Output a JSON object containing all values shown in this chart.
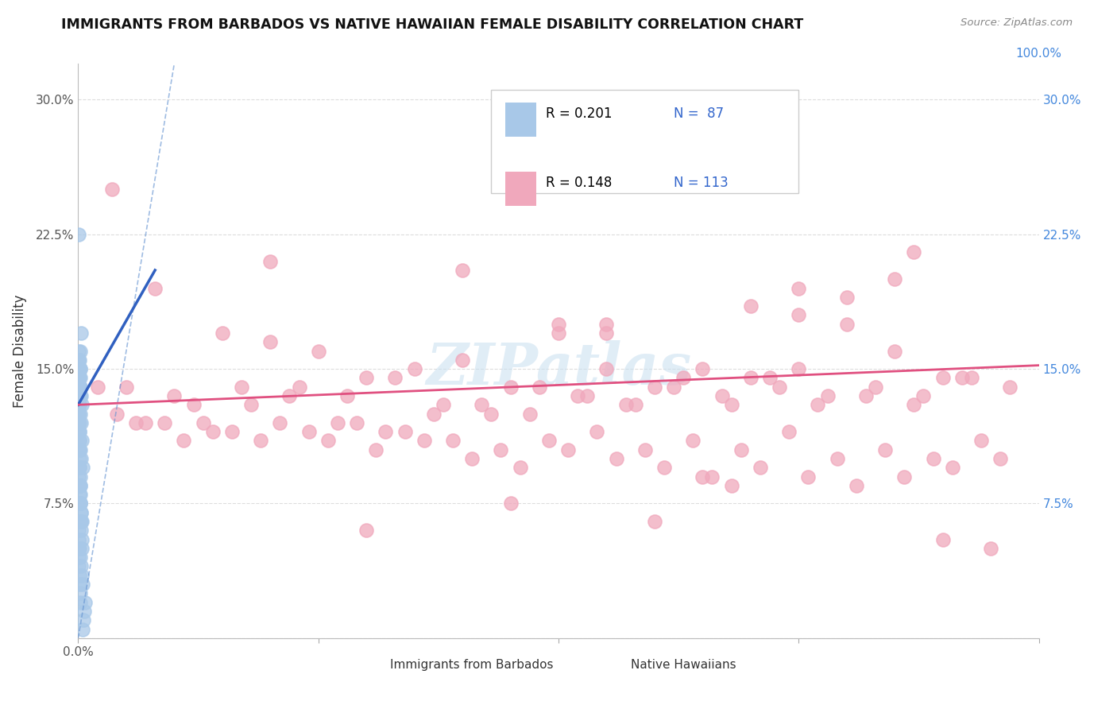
{
  "title": "IMMIGRANTS FROM BARBADOS VS NATIVE HAWAIIAN FEMALE DISABILITY CORRELATION CHART",
  "source": "Source: ZipAtlas.com",
  "ylabel": "Female Disability",
  "xlim": [
    0,
    100
  ],
  "ylim": [
    0,
    32
  ],
  "yticks": [
    0,
    7.5,
    15.0,
    22.5,
    30.0
  ],
  "xticks": [
    0,
    25,
    50,
    75,
    100
  ],
  "xticklabels_left": [
    "0.0%",
    "",
    "",
    "",
    ""
  ],
  "xticklabels_right_val": 100,
  "xticklabels_right_label": "100.0%",
  "yticklabels_left": [
    "",
    "7.5%",
    "15.0%",
    "22.5%",
    "30.0%"
  ],
  "yticklabels_right": [
    "",
    "7.5%",
    "15.0%",
    "22.5%",
    "30.0%"
  ],
  "legend_R1": "R = 0.201",
  "legend_N1": "N =  87",
  "legend_R2": "R = 0.148",
  "legend_N2": "N = 113",
  "blue_color": "#a8c8e8",
  "pink_color": "#f0a8bc",
  "blue_line_color": "#3060c0",
  "pink_line_color": "#e05080",
  "blue_dash_color": "#6090d0",
  "background_color": "#ffffff",
  "watermark": "ZIPatlas",
  "grid_color": "#dddddd",
  "right_label_color": "#4488dd",
  "legend_text_color": "#000000",
  "legend_stat_color": "#3366cc",
  "blue_trend_x0": 0.0,
  "blue_trend_y0": 13.0,
  "blue_trend_x1": 8.0,
  "blue_trend_y1": 20.5,
  "blue_dash_x0": 0.0,
  "blue_dash_y0": 0.0,
  "blue_dash_x1": 10.0,
  "blue_dash_y1": 32.0,
  "pink_trend_x0": 0.0,
  "pink_trend_y0": 13.0,
  "pink_trend_x1": 100.0,
  "pink_trend_y1": 15.2,
  "blue_scatter_x": [
    0.05,
    0.08,
    0.1,
    0.12,
    0.15,
    0.18,
    0.2,
    0.22,
    0.25,
    0.3,
    0.03,
    0.04,
    0.06,
    0.07,
    0.09,
    0.11,
    0.13,
    0.14,
    0.16,
    0.17,
    0.19,
    0.21,
    0.23,
    0.24,
    0.26,
    0.28,
    0.32,
    0.35,
    0.02,
    0.05,
    0.08,
    0.1,
    0.15,
    0.2,
    0.25,
    0.03,
    0.07,
    0.12,
    0.18,
    0.22,
    0.04,
    0.06,
    0.09,
    0.11,
    0.16,
    0.21,
    0.28,
    0.38,
    0.02,
    0.05,
    0.08,
    0.13,
    0.19,
    0.24,
    0.3,
    0.42,
    0.03,
    0.06,
    0.1,
    0.14,
    0.2,
    0.27,
    0.35,
    0.04,
    0.07,
    0.11,
    0.17,
    0.23,
    0.31,
    0.45,
    0.05,
    0.09,
    0.15,
    0.21,
    0.29,
    0.37,
    0.03,
    0.08,
    0.13,
    0.2,
    0.28,
    0.34,
    0.5,
    0.48,
    0.55,
    0.6,
    0.7
  ],
  "blue_scatter_y": [
    14.5,
    22.5,
    13.0,
    14.0,
    15.5,
    16.0,
    15.0,
    14.0,
    13.5,
    17.0,
    13.0,
    12.0,
    13.5,
    12.5,
    11.5,
    10.5,
    11.0,
    12.0,
    10.0,
    9.5,
    9.0,
    8.5,
    8.0,
    7.5,
    7.0,
    6.5,
    6.0,
    5.5,
    5.0,
    4.5,
    4.0,
    3.5,
    3.0,
    2.5,
    2.0,
    14.5,
    13.5,
    14.0,
    15.0,
    14.5,
    15.5,
    15.0,
    14.0,
    13.5,
    13.0,
    12.5,
    12.0,
    11.0,
    12.5,
    11.5,
    10.5,
    9.5,
    8.5,
    7.5,
    6.5,
    5.0,
    16.0,
    15.5,
    15.0,
    14.5,
    14.0,
    13.5,
    13.0,
    12.5,
    12.0,
    11.5,
    11.0,
    10.5,
    10.0,
    9.5,
    9.0,
    8.5,
    8.0,
    7.5,
    7.0,
    6.5,
    6.0,
    5.5,
    5.0,
    4.5,
    4.0,
    3.5,
    3.0,
    0.5,
    1.0,
    1.5,
    2.0
  ],
  "pink_scatter_x": [
    3.5,
    8.0,
    15.0,
    20.0,
    25.0,
    30.0,
    35.0,
    40.0,
    45.0,
    50.0,
    55.0,
    60.0,
    65.0,
    70.0,
    75.0,
    80.0,
    85.0,
    90.0,
    5.0,
    10.0,
    18.0,
    23.0,
    28.0,
    33.0,
    38.0,
    43.0,
    48.0,
    53.0,
    58.0,
    63.0,
    68.0,
    73.0,
    78.0,
    83.0,
    88.0,
    93.0,
    6.0,
    12.0,
    17.0,
    22.0,
    27.0,
    32.0,
    37.0,
    42.0,
    47.0,
    52.0,
    57.0,
    62.0,
    67.0,
    72.0,
    77.0,
    82.0,
    87.0,
    92.0,
    97.0,
    4.0,
    9.0,
    14.0,
    19.0,
    24.0,
    29.0,
    34.0,
    39.0,
    44.0,
    49.0,
    54.0,
    59.0,
    64.0,
    69.0,
    74.0,
    79.0,
    84.0,
    89.0,
    94.0,
    7.0,
    11.0,
    16.0,
    21.0,
    26.0,
    31.0,
    36.0,
    41.0,
    46.0,
    51.0,
    56.0,
    61.0,
    66.0,
    71.0,
    76.0,
    81.0,
    86.0,
    91.0,
    96.0,
    2.0,
    13.0,
    50.0,
    55.0,
    70.0,
    75.0,
    80.0,
    85.0,
    65.0,
    68.0,
    30.0,
    45.0,
    60.0,
    90.0,
    95.0,
    20.0,
    40.0,
    55.0,
    75.0,
    87.0
  ],
  "pink_scatter_y": [
    25.0,
    19.5,
    17.0,
    16.5,
    16.0,
    14.5,
    15.0,
    15.5,
    14.0,
    17.0,
    17.5,
    14.0,
    15.0,
    14.5,
    15.0,
    17.5,
    16.0,
    14.5,
    14.0,
    13.5,
    13.0,
    14.0,
    13.5,
    14.5,
    13.0,
    12.5,
    14.0,
    13.5,
    13.0,
    14.5,
    13.0,
    14.0,
    13.5,
    14.0,
    13.5,
    14.5,
    12.0,
    13.0,
    14.0,
    13.5,
    12.0,
    11.5,
    12.5,
    13.0,
    12.5,
    13.5,
    13.0,
    14.0,
    13.5,
    14.5,
    13.0,
    13.5,
    13.0,
    14.5,
    14.0,
    12.5,
    12.0,
    11.5,
    11.0,
    11.5,
    12.0,
    11.5,
    11.0,
    10.5,
    11.0,
    11.5,
    10.5,
    11.0,
    10.5,
    11.5,
    10.0,
    10.5,
    10.0,
    11.0,
    12.0,
    11.0,
    11.5,
    12.0,
    11.0,
    10.5,
    11.0,
    10.0,
    9.5,
    10.5,
    10.0,
    9.5,
    9.0,
    9.5,
    9.0,
    8.5,
    9.0,
    9.5,
    10.0,
    14.0,
    12.0,
    17.5,
    15.0,
    18.5,
    18.0,
    19.0,
    20.0,
    9.0,
    8.5,
    6.0,
    7.5,
    6.5,
    5.5,
    5.0,
    21.0,
    20.5,
    17.0,
    19.5,
    21.5
  ]
}
